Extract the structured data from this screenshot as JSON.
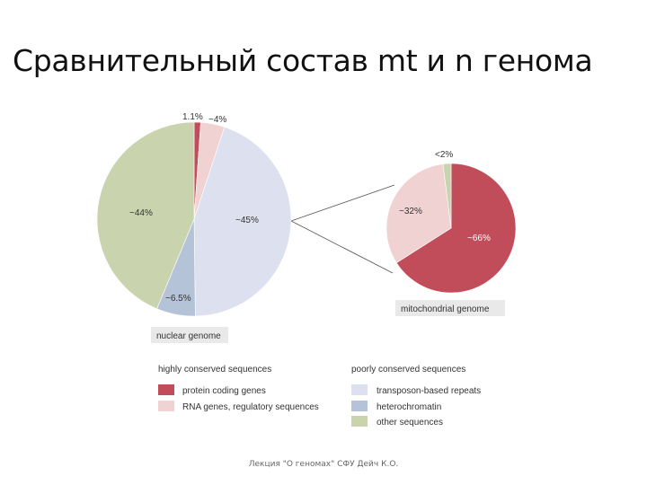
{
  "slide": {
    "title": "Сравнительный состав mt и n генома",
    "footer": "Лекция \"О геномах\" СФУ Дейч К.О."
  },
  "colors": {
    "protein": "#c24d5a",
    "rna": "#f0d2d2",
    "transposon": "#dde0ee",
    "heterochromatin": "#b4c3d7",
    "other": "#c9d3ae"
  },
  "chart_data": [
    {
      "type": "pie",
      "caption": "nuclear genome",
      "slices": [
        {
          "key": "protein",
          "label": "1.1%",
          "value": 1.1
        },
        {
          "key": "rna",
          "label": "~4%",
          "value": 4
        },
        {
          "key": "transposon",
          "label": "~45%",
          "value": 45
        },
        {
          "key": "heterochromatin",
          "label": "~6.5%",
          "value": 6.5
        },
        {
          "key": "other",
          "label": "~44%",
          "value": 44
        }
      ]
    },
    {
      "type": "pie",
      "caption": "mitochondrial genome",
      "slices": [
        {
          "key": "protein",
          "label": "~66%",
          "value": 66
        },
        {
          "key": "rna",
          "label": "~32%",
          "value": 32
        },
        {
          "key": "other",
          "label": "<2%",
          "value": 2
        }
      ]
    }
  ],
  "legend": {
    "groups": [
      {
        "title": "highly conserved sequences",
        "items": [
          {
            "key": "protein",
            "label": "protein coding genes"
          },
          {
            "key": "rna",
            "label": "RNA genes, regulatory sequences"
          }
        ]
      },
      {
        "title": "poorly conserved sequences",
        "items": [
          {
            "key": "transposon",
            "label": "transposon-based repeats"
          },
          {
            "key": "heterochromatin",
            "label": "heterochromatin"
          },
          {
            "key": "other",
            "label": "other sequences"
          }
        ]
      }
    ]
  }
}
